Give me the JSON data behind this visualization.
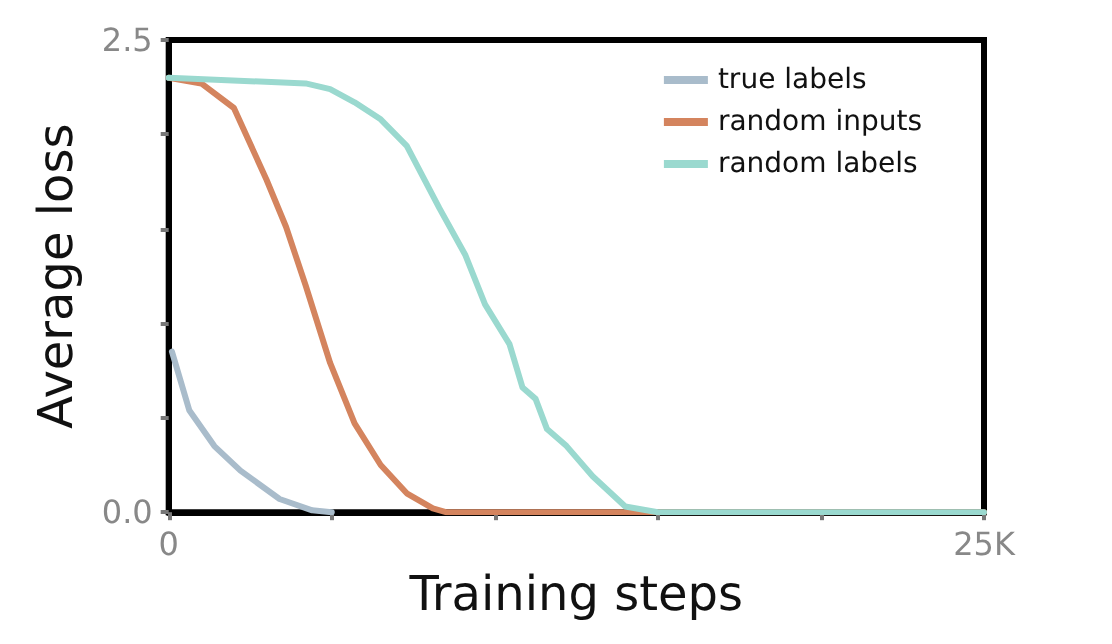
{
  "chart_data": {
    "type": "line",
    "xlabel": "Training steps",
    "ylabel": "Average loss",
    "xlim": [
      0,
      25000
    ],
    "ylim": [
      0,
      2.5
    ],
    "xticks": [
      {
        "value": 0,
        "label": "0"
      },
      {
        "value": 5000,
        "label": null
      },
      {
        "value": 10000,
        "label": null
      },
      {
        "value": 15000,
        "label": null
      },
      {
        "value": 20000,
        "label": null
      },
      {
        "value": 25000,
        "label": "25K"
      }
    ],
    "yticks": [
      {
        "value": 0,
        "label": "0.0"
      },
      {
        "value": 0.5,
        "label": null
      },
      {
        "value": 1,
        "label": null
      },
      {
        "value": 1.5,
        "label": null
      },
      {
        "value": 2,
        "label": null
      },
      {
        "value": 2.5,
        "label": "2.5"
      }
    ],
    "grid": false,
    "legend": "top right",
    "marker": "none",
    "line_style": "solid",
    "series": [
      {
        "name": "true labels",
        "color": "#a9bccb",
        "x": [
          100,
          630,
          1400,
          2200,
          3400,
          4400,
          5000
        ],
        "values": [
          0.85,
          0.54,
          0.35,
          0.22,
          0.07,
          0.01,
          0
        ]
      },
      {
        "name": "random inputs",
        "color": "#d4845e",
        "x": [
          0,
          1000,
          2000,
          3000,
          3600,
          4200,
          4950,
          5700,
          6500,
          7300,
          8100,
          8500,
          25000
        ],
        "values": [
          2.3,
          2.27,
          2.14,
          1.76,
          1.51,
          1.2,
          0.79,
          0.47,
          0.25,
          0.1,
          0.02,
          0,
          0
        ]
      },
      {
        "name": "random labels",
        "color": "#9ad9cf",
        "x": [
          0,
          4200,
          4950,
          5700,
          6500,
          7300,
          8300,
          9100,
          9700,
          10450,
          10850,
          11250,
          11600,
          12200,
          13000,
          14000,
          15000,
          25000
        ],
        "values": [
          2.3,
          2.27,
          2.24,
          2.17,
          2.08,
          1.94,
          1.61,
          1.36,
          1.1,
          0.89,
          0.66,
          0.6,
          0.44,
          0.35,
          0.19,
          0.03,
          0,
          0
        ]
      }
    ]
  }
}
